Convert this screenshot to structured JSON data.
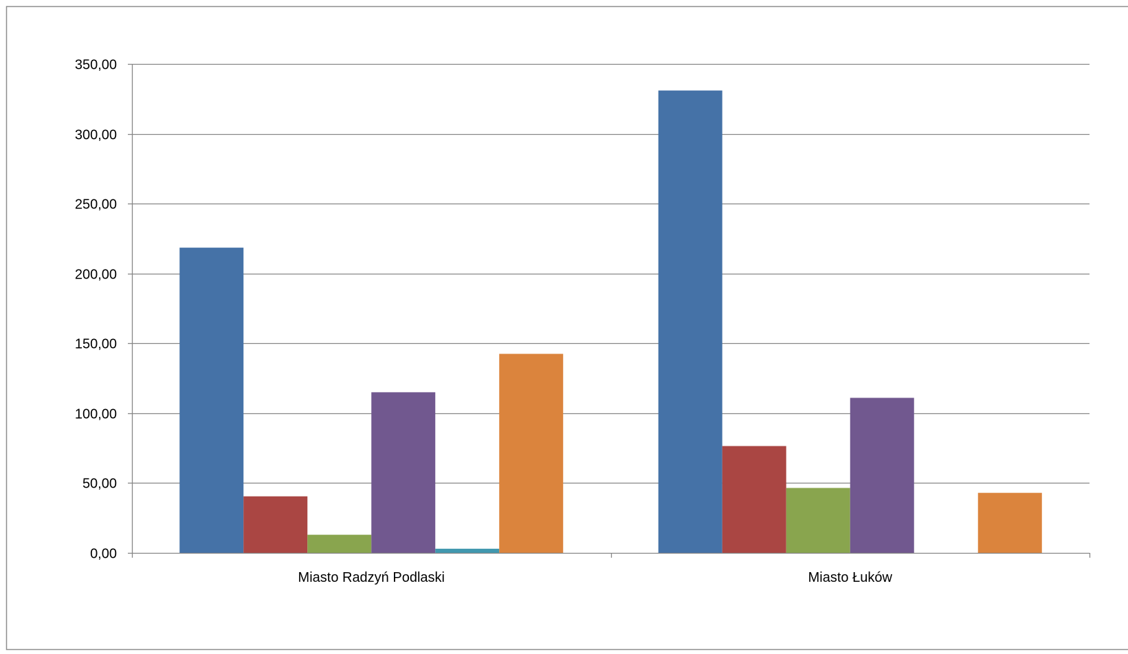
{
  "chart_data": {
    "type": "bar",
    "title": "",
    "xlabel": "",
    "ylabel": "",
    "ylim": [
      0,
      350
    ],
    "yticks": [
      "0,00",
      "50,00",
      "100,00",
      "150,00",
      "200,00",
      "250,00",
      "300,00",
      "350,00"
    ],
    "ytick_values": [
      0,
      50,
      100,
      150,
      200,
      250,
      300,
      350
    ],
    "grid": true,
    "legend": "none",
    "categories": [
      "Miasto Radzyń Podlaski",
      "Miasto Łuków"
    ],
    "series": [
      {
        "color": "#4572A7",
        "values": [
          218.5,
          331.0
        ]
      },
      {
        "color": "#AA4643",
        "values": [
          40.5,
          76.5
        ]
      },
      {
        "color": "#89A54E",
        "values": [
          13.0,
          46.5
        ]
      },
      {
        "color": "#71588F",
        "values": [
          115.0,
          111.0
        ]
      },
      {
        "color": "#4198AF",
        "values": [
          3.0,
          0
        ]
      },
      {
        "color": "#DB843D",
        "values": [
          142.5,
          43.0
        ]
      }
    ]
  }
}
